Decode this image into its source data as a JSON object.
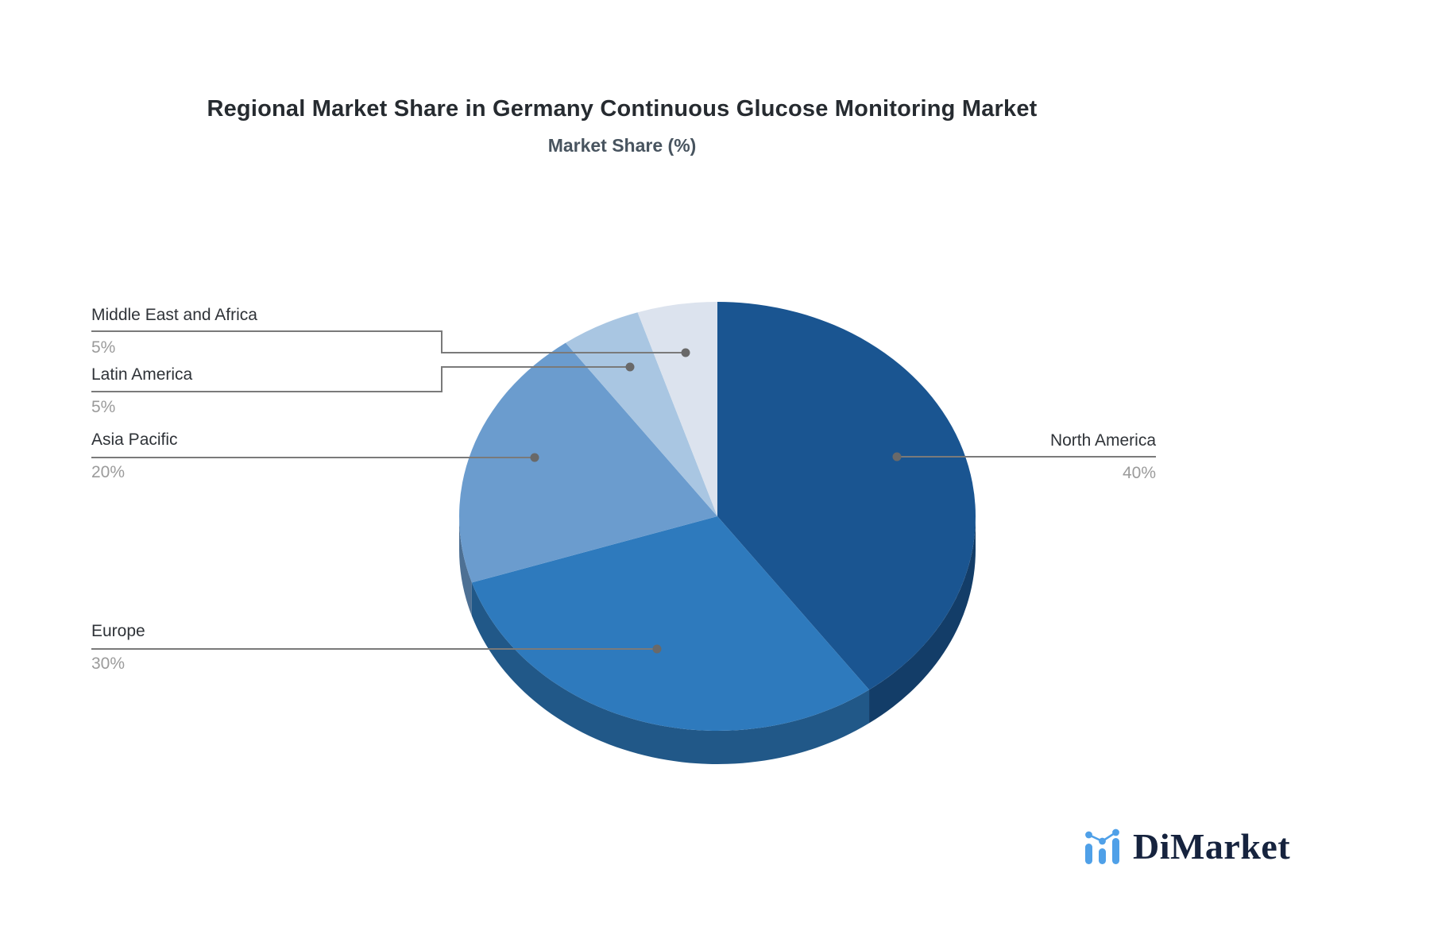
{
  "title": "Regional Market Share in Germany Continuous Glucose Monitoring Market",
  "subtitle": "Market Share (%)",
  "chart_data": {
    "type": "pie",
    "style": "3d",
    "unit": "%",
    "start_angle_deg": 0,
    "direction": "clockwise",
    "title": "Regional Market Share in Germany Continuous Glucose Monitoring Market",
    "subtitle": "Market Share (%)",
    "categories": [
      "North America",
      "Europe",
      "Asia Pacific",
      "Latin America",
      "Middle East and Africa"
    ],
    "values": [
      40,
      30,
      20,
      5,
      5
    ],
    "slices": [
      {
        "name": "North America",
        "value": 40,
        "display": "40%",
        "color": "#1A5591"
      },
      {
        "name": "Europe",
        "value": 30,
        "display": "30%",
        "color": "#2E7ABD"
      },
      {
        "name": "Asia Pacific",
        "value": 20,
        "display": "20%",
        "color": "#6B9CCE"
      },
      {
        "name": "Latin America",
        "value": 5,
        "display": "5%",
        "color": "#A9C6E2"
      },
      {
        "name": "Middle East and Africa",
        "value": 5,
        "display": "5%",
        "color": "#DCE3EE"
      }
    ],
    "legend_position": "callout-labels"
  },
  "colors": {
    "background": "#FFFFFF",
    "leader_line": "#7A7A7A",
    "leader_dot": "#696969",
    "label_text": "#2F3338",
    "pct_text": "#9B9B9B",
    "title_text": "#262B30",
    "subtitle_text": "#48545F"
  },
  "branding": {
    "logo_text": "DiMarket",
    "logo_icon": "bar-chart-trend-icon",
    "logo_icon_color": "#4FA0E8",
    "logo_text_color": "#16233E"
  }
}
